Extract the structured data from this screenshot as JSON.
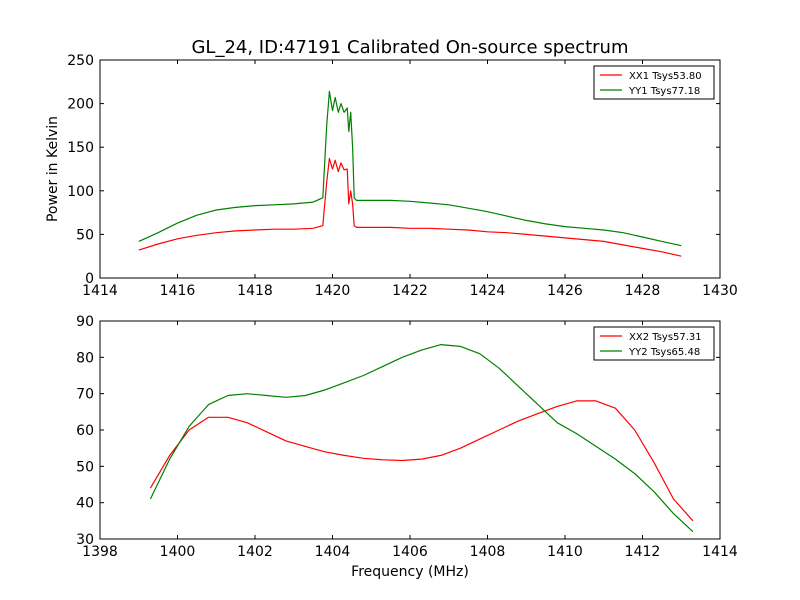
{
  "title": "GL_24, ID:47191 Calibrated On-source spectrum",
  "colors": {
    "red": "#ff0000",
    "green": "#008000"
  },
  "chart_data": [
    {
      "type": "line",
      "ylabel": "Power in Kelvin",
      "xlabel": "",
      "xlim": [
        1414,
        1430
      ],
      "ylim": [
        0,
        250
      ],
      "xticks": [
        "1414",
        "1416",
        "1418",
        "1420",
        "1422",
        "1424",
        "1426",
        "1428",
        "1430"
      ],
      "yticks": [
        "0",
        "50",
        "100",
        "150",
        "200",
        "250"
      ],
      "legend": "top-right",
      "series": [
        {
          "name": "XX1 Tsys53.80",
          "color": "#ff0000",
          "x": [
            1415.0,
            1415.5,
            1416.0,
            1416.5,
            1417.0,
            1417.5,
            1418.0,
            1418.5,
            1419.0,
            1419.5,
            1419.75,
            1419.85,
            1419.92,
            1420.0,
            1420.07,
            1420.15,
            1420.22,
            1420.3,
            1420.38,
            1420.42,
            1420.47,
            1420.52,
            1420.56,
            1420.62,
            1421.0,
            1421.5,
            1422.0,
            1422.5,
            1423.0,
            1423.5,
            1424.0,
            1424.5,
            1425.0,
            1425.5,
            1426.0,
            1426.5,
            1427.0,
            1427.5,
            1428.0,
            1428.5,
            1429.0
          ],
          "y": [
            32,
            39,
            45,
            49,
            52,
            54,
            55,
            56,
            56,
            57,
            60,
            110,
            137,
            125,
            135,
            122,
            132,
            124,
            125,
            85,
            100,
            85,
            60,
            58,
            58,
            58,
            57,
            57,
            56,
            55,
            53,
            52,
            50,
            48,
            46,
            44,
            42,
            38,
            34,
            30,
            25
          ]
        },
        {
          "name": "YY1 Tsys77.18",
          "color": "#008000",
          "x": [
            1415.0,
            1415.5,
            1416.0,
            1416.5,
            1417.0,
            1417.5,
            1418.0,
            1418.5,
            1419.0,
            1419.5,
            1419.75,
            1419.85,
            1419.92,
            1420.0,
            1420.07,
            1420.15,
            1420.22,
            1420.3,
            1420.38,
            1420.42,
            1420.47,
            1420.52,
            1420.56,
            1420.62,
            1421.0,
            1421.5,
            1422.0,
            1422.5,
            1423.0,
            1423.5,
            1424.0,
            1424.5,
            1425.0,
            1425.5,
            1426.0,
            1426.5,
            1427.0,
            1427.5,
            1428.0,
            1428.5,
            1429.0
          ],
          "y": [
            42,
            52,
            63,
            72,
            78,
            81,
            83,
            84,
            85,
            87,
            92,
            175,
            214,
            192,
            207,
            190,
            200,
            190,
            195,
            168,
            190,
            150,
            92,
            89,
            89,
            89,
            88,
            86,
            84,
            80,
            76,
            71,
            66,
            62,
            59,
            57,
            55,
            52,
            47,
            42,
            37
          ]
        }
      ]
    },
    {
      "type": "line",
      "ylabel": "",
      "xlabel": "Frequency (MHz)",
      "xlim": [
        1398,
        1414
      ],
      "ylim": [
        30,
        90
      ],
      "xticks": [
        "1398",
        "1400",
        "1402",
        "1404",
        "1406",
        "1408",
        "1410",
        "1412",
        "1414"
      ],
      "yticks": [
        "30",
        "40",
        "50",
        "60",
        "70",
        "80",
        "90"
      ],
      "legend": "top-right",
      "series": [
        {
          "name": "XX2 Tsys57.31",
          "color": "#ff0000",
          "x": [
            1399.3,
            1399.8,
            1400.3,
            1400.8,
            1401.3,
            1401.8,
            1402.3,
            1402.8,
            1403.3,
            1403.8,
            1404.3,
            1404.8,
            1405.3,
            1405.8,
            1406.3,
            1406.8,
            1407.3,
            1407.8,
            1408.3,
            1408.8,
            1409.3,
            1409.8,
            1410.3,
            1410.8,
            1411.3,
            1411.8,
            1412.3,
            1412.8,
            1413.3
          ],
          "y": [
            44,
            53,
            60,
            63.5,
            63.5,
            62,
            59.5,
            57,
            55.5,
            54,
            53,
            52.2,
            51.8,
            51.6,
            52,
            53,
            55,
            57.5,
            60,
            62.5,
            64.5,
            66.5,
            68,
            68,
            66,
            60,
            51,
            41,
            35
          ]
        },
        {
          "name": "YY2 Tsys65.48",
          "color": "#008000",
          "x": [
            1399.3,
            1399.8,
            1400.3,
            1400.8,
            1401.3,
            1401.8,
            1402.3,
            1402.8,
            1403.3,
            1403.8,
            1404.3,
            1404.8,
            1405.3,
            1405.8,
            1406.3,
            1406.8,
            1407.3,
            1407.8,
            1408.3,
            1408.8,
            1409.3,
            1409.8,
            1410.3,
            1410.8,
            1411.3,
            1411.8,
            1412.3,
            1412.8,
            1413.3
          ],
          "y": [
            41,
            52,
            61,
            67,
            69.5,
            70,
            69.5,
            69,
            69.5,
            71,
            73,
            75,
            77.5,
            80,
            82,
            83.5,
            83,
            81,
            77,
            72,
            67,
            62,
            59,
            55.5,
            52,
            48,
            43,
            37,
            32
          ]
        }
      ]
    }
  ]
}
